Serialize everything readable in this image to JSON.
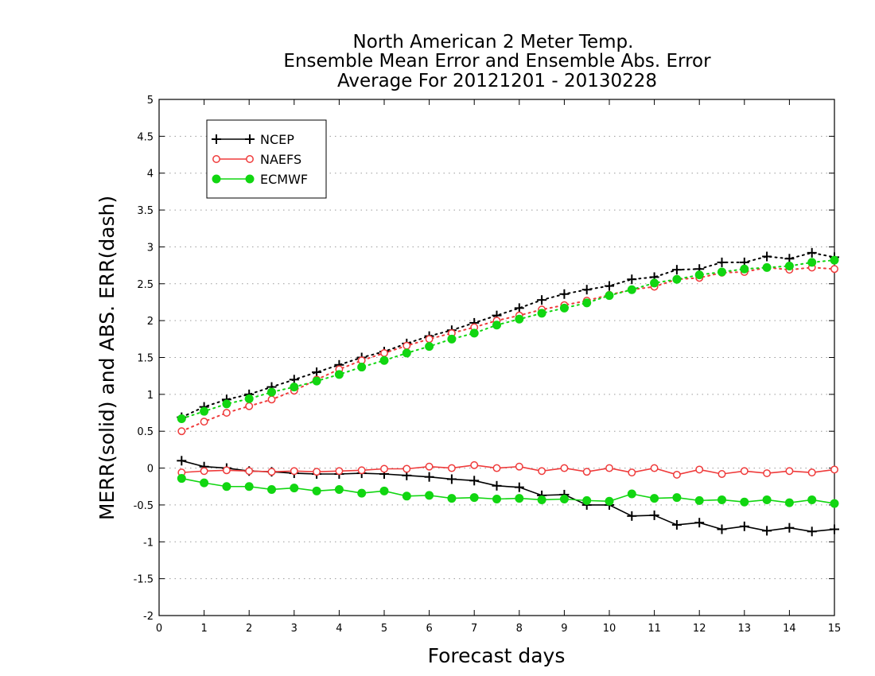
{
  "chart_data": {
    "type": "line",
    "title_lines": [
      "North American 2 Meter Temp.",
      "Ensemble Mean Error and Ensemble Abs. Error",
      "Average For 20121201 - 20130228"
    ],
    "xlabel": "Forecast days",
    "ylabel": "MERR(solid) and ABS. ERR(dash)",
    "xlim": [
      0,
      15
    ],
    "ylim": [
      -2,
      5
    ],
    "xticks": [
      "0",
      "1",
      "2",
      "3",
      "4",
      "5",
      "6",
      "7",
      "8",
      "9",
      "10",
      "11",
      "12",
      "13",
      "14",
      "15"
    ],
    "yticks": [
      "5",
      "4.5",
      "4",
      "3.5",
      "3",
      "2.5",
      "2",
      "1.5",
      "1",
      "0.5",
      "0",
      "-0.5",
      "-1",
      "-1.5",
      "-2"
    ],
    "grid": "horizontal dotted",
    "legend_position": "top-left",
    "x": [
      0.5,
      1,
      1.5,
      2,
      2.5,
      3,
      3.5,
      4,
      4.5,
      5,
      5.5,
      6,
      6.5,
      7,
      7.5,
      8,
      8.5,
      9,
      9.5,
      10,
      10.5,
      11,
      11.5,
      12,
      12.5,
      13,
      13.5,
      14,
      14.5,
      15
    ],
    "series": [
      {
        "name": "NCEP",
        "color": "#000000",
        "marker": "plus",
        "merr": [
          0.1,
          0.02,
          0.0,
          -0.04,
          -0.05,
          -0.07,
          -0.08,
          -0.08,
          -0.07,
          -0.08,
          -0.1,
          -0.12,
          -0.15,
          -0.17,
          -0.24,
          -0.26,
          -0.37,
          -0.36,
          -0.5,
          -0.5,
          -0.65,
          -0.64,
          -0.77,
          -0.74,
          -0.83,
          -0.79,
          -0.85,
          -0.81,
          -0.86,
          -0.83
        ],
        "abs_err": [
          0.69,
          0.83,
          0.93,
          1.0,
          1.1,
          1.2,
          1.3,
          1.4,
          1.5,
          1.58,
          1.69,
          1.79,
          1.87,
          1.97,
          2.07,
          2.17,
          2.28,
          2.36,
          2.42,
          2.47,
          2.56,
          2.59,
          2.69,
          2.7,
          2.79,
          2.79,
          2.87,
          2.84,
          2.92,
          2.86
        ]
      },
      {
        "name": "NAEFS",
        "color": "#ef3b3b",
        "marker": "open-circle",
        "merr": [
          -0.06,
          -0.04,
          -0.03,
          -0.04,
          -0.05,
          -0.04,
          -0.05,
          -0.04,
          -0.03,
          -0.01,
          -0.01,
          0.02,
          0.0,
          0.04,
          0.0,
          0.02,
          -0.04,
          0.0,
          -0.05,
          0.0,
          -0.06,
          0.0,
          -0.09,
          -0.02,
          -0.08,
          -0.04,
          -0.07,
          -0.04,
          -0.06,
          -0.02
        ],
        "abs_err": [
          0.5,
          0.63,
          0.75,
          0.84,
          0.93,
          1.05,
          1.2,
          1.34,
          1.46,
          1.56,
          1.66,
          1.75,
          1.83,
          1.91,
          2.0,
          2.07,
          2.15,
          2.21,
          2.27,
          2.35,
          2.42,
          2.46,
          2.56,
          2.58,
          2.65,
          2.66,
          2.72,
          2.69,
          2.72,
          2.7
        ]
      },
      {
        "name": "ECMWF",
        "color": "#11d611",
        "marker": "filled-circle",
        "merr": [
          -0.14,
          -0.2,
          -0.25,
          -0.25,
          -0.29,
          -0.27,
          -0.31,
          -0.29,
          -0.34,
          -0.31,
          -0.38,
          -0.37,
          -0.41,
          -0.4,
          -0.42,
          -0.41,
          -0.43,
          -0.42,
          -0.44,
          -0.45,
          -0.35,
          -0.41,
          -0.4,
          -0.44,
          -0.43,
          -0.46,
          -0.43,
          -0.47,
          -0.43,
          -0.48
        ],
        "abs_err": [
          0.67,
          0.77,
          0.87,
          0.94,
          1.03,
          1.1,
          1.18,
          1.27,
          1.37,
          1.46,
          1.56,
          1.65,
          1.75,
          1.83,
          1.94,
          2.02,
          2.1,
          2.17,
          2.24,
          2.34,
          2.42,
          2.51,
          2.56,
          2.62,
          2.66,
          2.7,
          2.72,
          2.74,
          2.79,
          2.82
        ]
      }
    ]
  }
}
